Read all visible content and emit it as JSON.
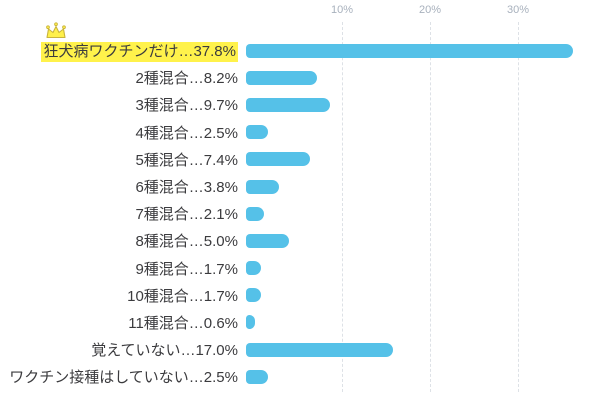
{
  "chart_data": {
    "type": "bar",
    "orientation": "horizontal",
    "title": "",
    "categories": [
      "狂犬病ワクチンだけ",
      "2種混合",
      "3種混合",
      "4種混合",
      "5種混合",
      "6種混合",
      "7種混合",
      "8種混合",
      "9種混合",
      "10種混合",
      "11種混合",
      "覚えていない",
      "ワクチン接種はしていない"
    ],
    "values": [
      37.8,
      8.2,
      9.7,
      2.5,
      7.4,
      3.8,
      2.1,
      5.0,
      1.7,
      1.7,
      0.6,
      17.0,
      2.5
    ],
    "display_labels": [
      "狂犬病ワクチンだけ…37.8%",
      "2種混合…8.2%",
      "3種混合…9.7%",
      "4種混合…2.5%",
      "5種混合…7.4%",
      "6種混合…3.8%",
      "7種混合…2.1%",
      "8種混合…5.0%",
      "9種混合…1.7%",
      "10種混合…1.7%",
      "11種混合…0.6%",
      "覚えていない…17.0%",
      "ワクチン接種はしていない…2.5%"
    ],
    "x_ticks": [
      {
        "label": "10%",
        "value": 10
      },
      {
        "label": "20%",
        "value": 20
      },
      {
        "label": "30%",
        "value": 30
      }
    ],
    "xlim": [
      0,
      40
    ],
    "grid": "dashed-vertical",
    "legend": "none",
    "bar_color": "#55C1E8",
    "text_color": "#3B3B3E",
    "tick_color": "#A8B1BD",
    "gridline_color": "#DDE1E6",
    "highlight": {
      "index": 0,
      "color": "#FFF24B",
      "crown_icon": true
    }
  }
}
